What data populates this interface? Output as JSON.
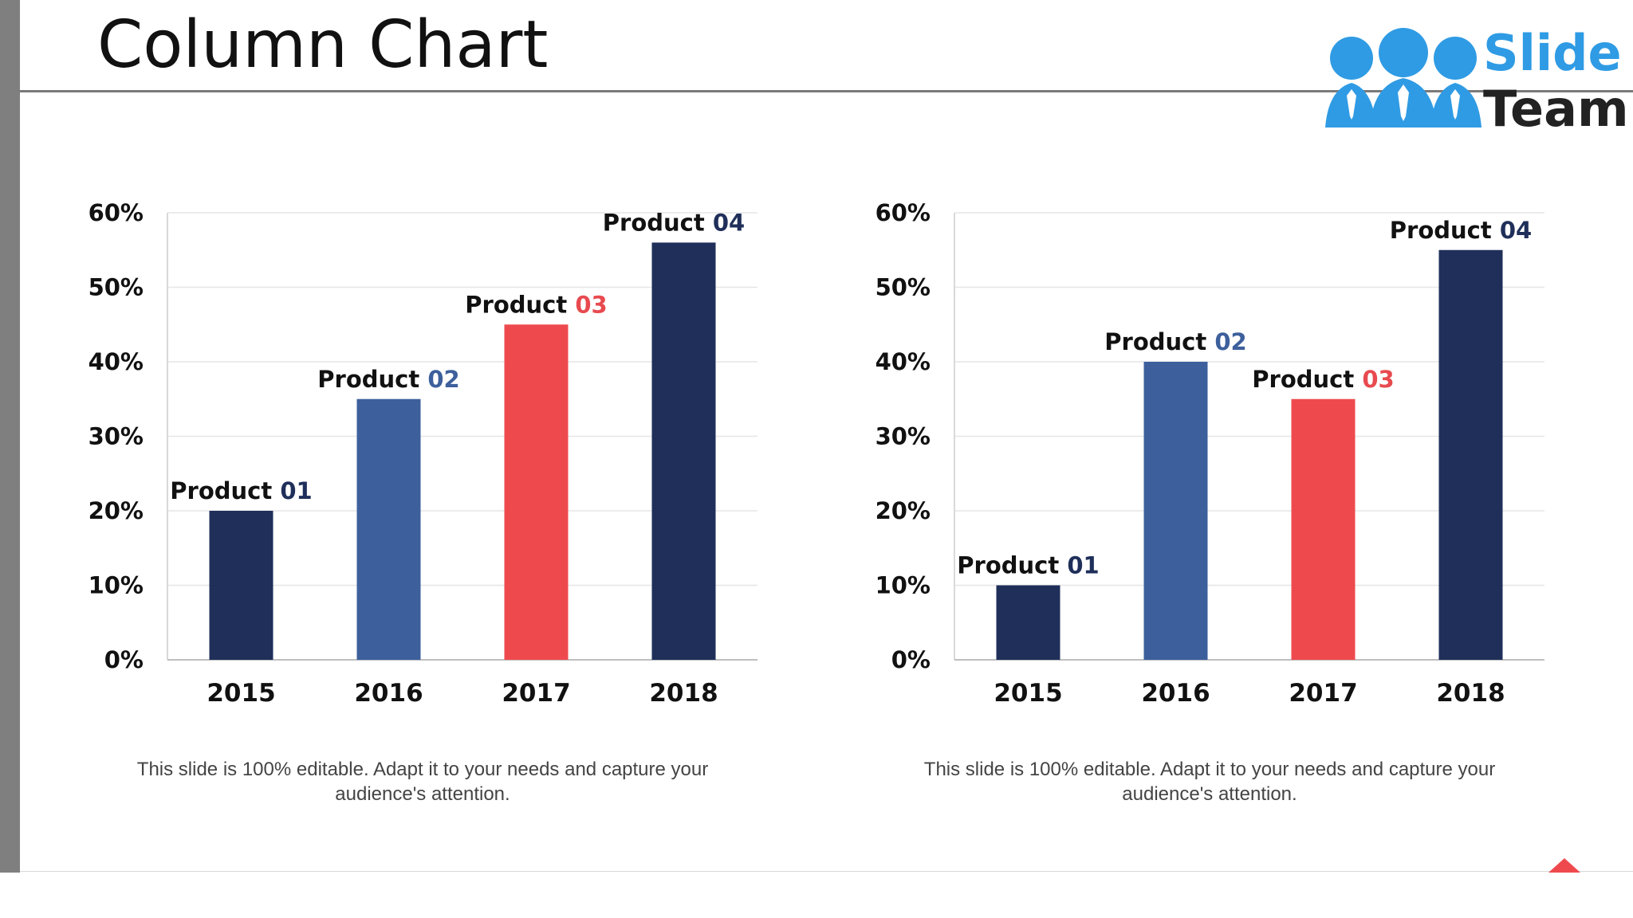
{
  "slide": {
    "title": "Column Chart",
    "logo": {
      "line1": "Slide",
      "line2": "Team"
    },
    "captions": [
      "This slide is 100% editable. Adapt it to your needs and capture your audience's attention.",
      "This slide is 100% editable. Adapt it to your needs and capture your audience's attention."
    ]
  },
  "colors": {
    "dark_navy": "#1f2f5a",
    "mid_blue": "#3d5f9c",
    "coral_red": "#ee4a4e",
    "label_number_navy": "#1f2f5a",
    "label_number_blue": "#3d5f9c",
    "label_number_red": "#e84a4f",
    "logo_blue": "#2f9be4"
  },
  "chart_data": [
    {
      "type": "bar",
      "title": "",
      "xlabel": "",
      "ylabel": "",
      "categories": [
        "2015",
        "2016",
        "2017",
        "2018"
      ],
      "values": [
        20,
        35,
        45,
        56
      ],
      "ylim": [
        0,
        60
      ],
      "yticks": [
        "0%",
        "10%",
        "20%",
        "30%",
        "40%",
        "50%",
        "60%"
      ],
      "grid": true,
      "bar_labels": [
        {
          "text": "Product",
          "num": "01"
        },
        {
          "text": "Product",
          "num": "02"
        },
        {
          "text": "Product",
          "num": "03"
        },
        {
          "text": "Product",
          "num": "04"
        }
      ],
      "bar_colors": [
        "#1f2f5a",
        "#3d5f9c",
        "#ee4a4e",
        "#1f2f5a"
      ],
      "num_colors": [
        "#1f2f5a",
        "#3d5f9c",
        "#e84a4f",
        "#1f2f5a"
      ]
    },
    {
      "type": "bar",
      "title": "",
      "xlabel": "",
      "ylabel": "",
      "categories": [
        "2015",
        "2016",
        "2017",
        "2018"
      ],
      "values": [
        10,
        40,
        35,
        55
      ],
      "ylim": [
        0,
        60
      ],
      "yticks": [
        "0%",
        "10%",
        "20%",
        "30%",
        "40%",
        "50%",
        "60%"
      ],
      "grid": true,
      "bar_labels": [
        {
          "text": "Product",
          "num": "01"
        },
        {
          "text": "Product",
          "num": "02"
        },
        {
          "text": "Product",
          "num": "03"
        },
        {
          "text": "Product",
          "num": "04"
        }
      ],
      "bar_colors": [
        "#1f2f5a",
        "#3d5f9c",
        "#ee4a4e",
        "#1f2f5a"
      ],
      "num_colors": [
        "#1f2f5a",
        "#3d5f9c",
        "#e84a4f",
        "#1f2f5a"
      ]
    }
  ]
}
